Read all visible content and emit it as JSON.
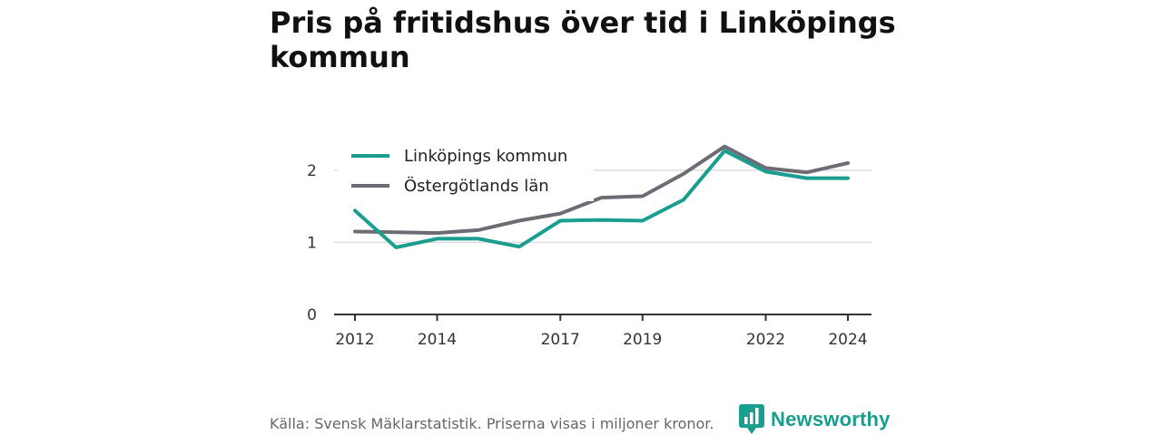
{
  "chart_data": {
    "type": "line",
    "title": "Pris på fritidshus över tid i Linköpings kommun",
    "xlabel": "",
    "ylabel": "",
    "x": [
      2012,
      2013,
      2014,
      2015,
      2016,
      2017,
      2018,
      2019,
      2020,
      2021,
      2022,
      2023,
      2024
    ],
    "x_ticks": [
      2012,
      2014,
      2017,
      2019,
      2022,
      2024
    ],
    "y_ticks": [
      0,
      1,
      2
    ],
    "ylim": [
      0,
      2.45
    ],
    "grid": true,
    "legend": "top-left",
    "series": [
      {
        "name": "Linköpings kommun",
        "color": "#1a9e8f",
        "values": [
          1.44,
          0.93,
          1.05,
          1.05,
          0.94,
          1.3,
          1.31,
          1.3,
          1.59,
          2.27,
          1.98,
          1.89,
          1.89
        ]
      },
      {
        "name": "Östergötlands län",
        "color": "#6e6b74",
        "values": [
          1.15,
          1.14,
          1.13,
          1.17,
          1.3,
          1.4,
          1.62,
          1.64,
          1.95,
          2.33,
          2.03,
          1.97,
          2.1
        ]
      }
    ]
  },
  "footer": {
    "source": "Källa: Svensk Mäklarstatistik. Priserna visas i miljoner kronor."
  },
  "brand": {
    "name": "Newsworthy",
    "color": "#1a9e8f",
    "icon": "newsworthy-logo-icon"
  }
}
